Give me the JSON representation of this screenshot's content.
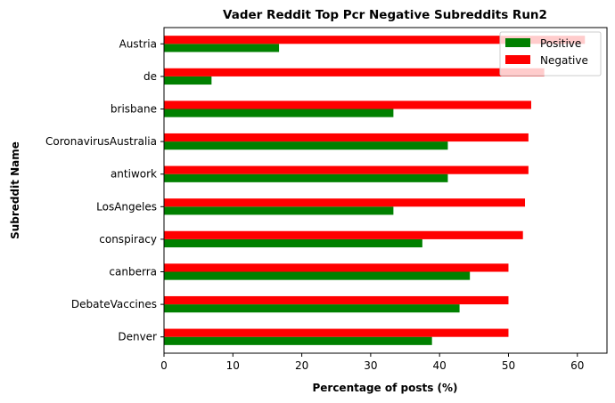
{
  "chart_data": {
    "type": "bar",
    "orientation": "horizontal",
    "title": "Vader Reddit Top Pcr Negative Subreddits Run2",
    "xlabel": "Percentage of posts (%)",
    "ylabel": "Subreddit Name",
    "xlim": [
      0,
      64.3
    ],
    "xticks": [
      0,
      10,
      20,
      30,
      40,
      50,
      60
    ],
    "grid": false,
    "legend_position": "top-right",
    "categories": [
      "Austria",
      "de",
      "brisbane",
      "CoronavirusAustralia",
      "antiwork",
      "LosAngeles",
      "conspiracy",
      "canberra",
      "DebateVaccines",
      "Denver"
    ],
    "series": [
      {
        "name": "Positive",
        "color": "#008000",
        "values": [
          16.7,
          6.9,
          33.3,
          41.2,
          41.2,
          33.3,
          37.5,
          44.4,
          42.9,
          38.9
        ]
      },
      {
        "name": "Negative",
        "color": "#ff0000",
        "values": [
          61.1,
          55.2,
          53.3,
          52.9,
          52.9,
          52.4,
          52.1,
          50.0,
          50.0,
          50.0
        ]
      }
    ]
  }
}
